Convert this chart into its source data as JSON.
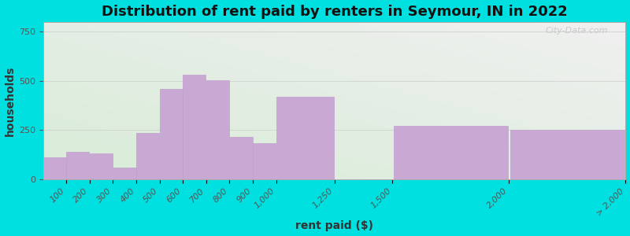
{
  "title": "Distribution of rent paid by renters in Seymour, IN in 2022",
  "xlabel": "rent paid ($)",
  "ylabel": "households",
  "tick_positions": [
    100,
    200,
    300,
    400,
    500,
    600,
    700,
    800,
    900,
    1000,
    1250,
    1500,
    2000,
    2500
  ],
  "tick_labels": [
    "100",
    "200",
    "300",
    "400",
    "500",
    "600",
    "700",
    "800",
    "900",
    "1,000",
    "1,250",
    "1,500",
    "2,000",
    "> 2,000"
  ],
  "bin_edges": [
    0,
    100,
    200,
    300,
    400,
    500,
    600,
    700,
    800,
    900,
    1000,
    1250,
    1500,
    2000,
    2500
  ],
  "bar_values": [
    110,
    140,
    130,
    60,
    235,
    460,
    530,
    505,
    215,
    185,
    420,
    0,
    270,
    250
  ],
  "bar_color": "#c9a8d4",
  "bar_edge_color": "#c0a0cc",
  "background_outer": "#00e0e0",
  "background_inner_top_left": "#d8ecd8",
  "background_inner_bottom_right": "#f0f0f0",
  "title_fontsize": 13,
  "axis_label_fontsize": 10,
  "tick_fontsize": 8,
  "ylim": [
    0,
    800
  ],
  "yticks": [
    0,
    250,
    500,
    750
  ],
  "watermark": "City-Data.com"
}
